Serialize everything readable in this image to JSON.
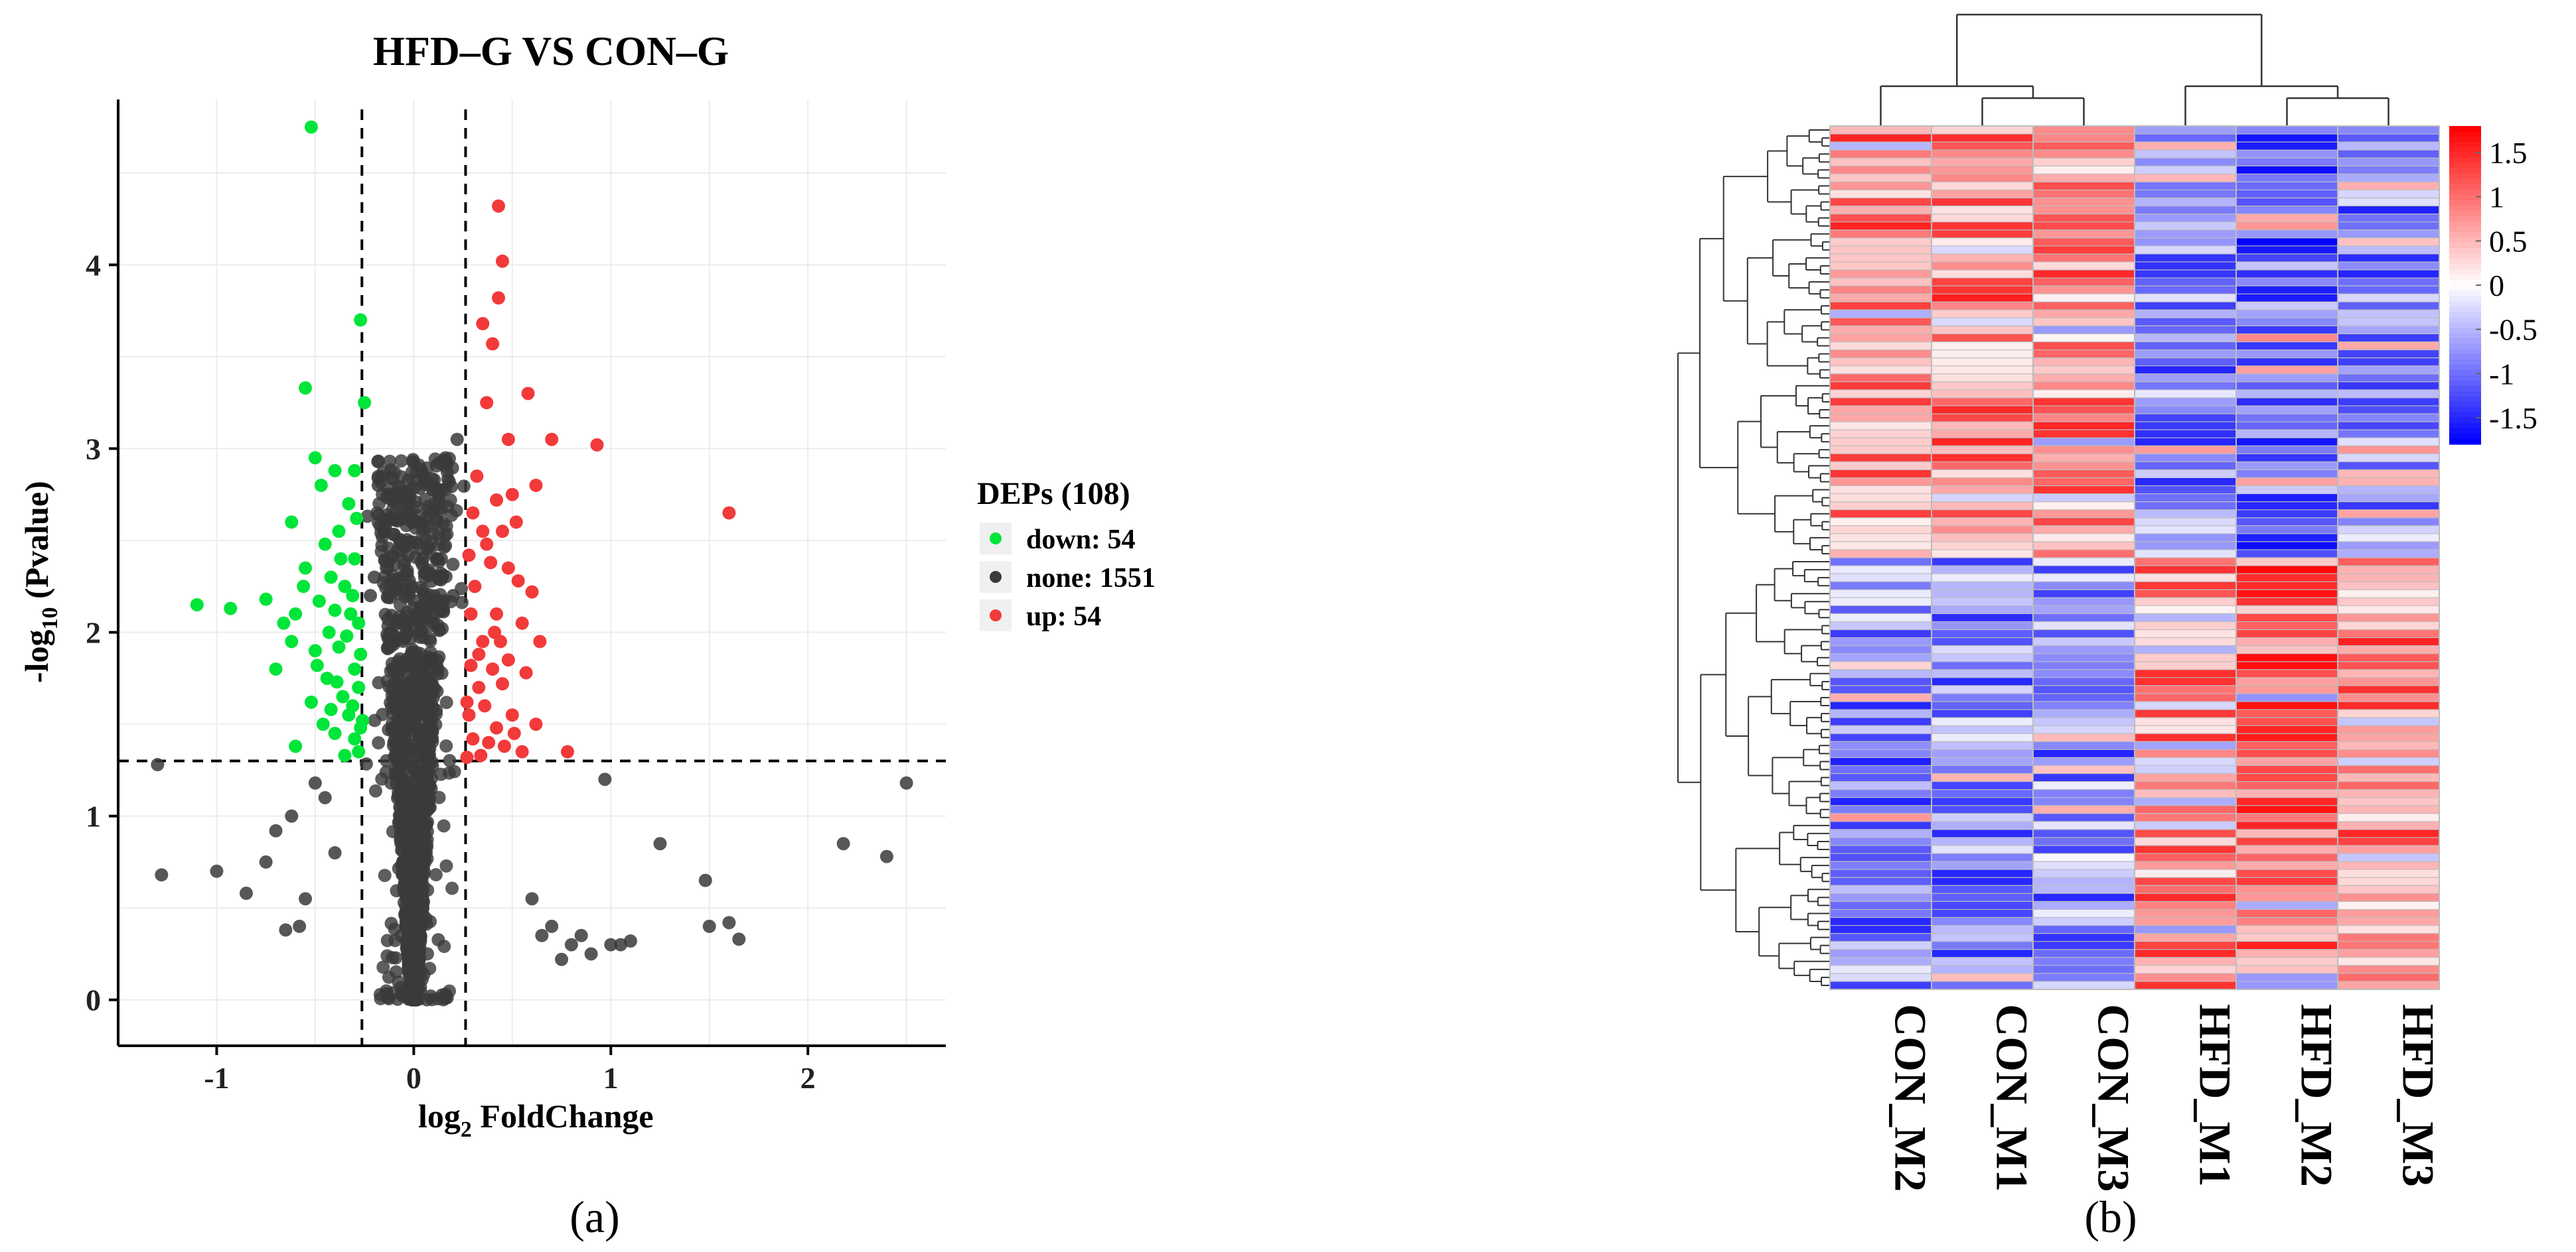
{
  "panel_a_label": "(a)",
  "panel_b_label": "(b)",
  "chart_data": [
    {
      "type": "scatter",
      "panel": "a",
      "title": "HFD–G VS CON–G",
      "xlabel_prefix": "log",
      "xlabel_sub": "2",
      "xlabel_suffix": " FoldChange",
      "ylabel_prefix": "-log",
      "ylabel_sub": "10",
      "ylabel_suffix": " (Pvalue)",
      "xlim": [
        -1.5,
        2.7
      ],
      "ylim": [
        -0.25,
        4.9
      ],
      "x_ticks": [
        -1,
        0,
        1,
        2
      ],
      "x_tick_labels": [
        "-1",
        "0",
        "1",
        "2"
      ],
      "y_ticks": [
        0,
        1,
        2,
        3,
        4
      ],
      "y_tick_labels": [
        "0",
        "1",
        "2",
        "3",
        "4"
      ],
      "thresholds": {
        "x": [
          -0.263,
          0.263
        ],
        "y": 1.3
      },
      "grid": true,
      "legend_title": "DEPs (108)",
      "legend": [
        {
          "label": "down: 54",
          "color": "#00e539"
        },
        {
          "label": "none: 1551",
          "color": "#3a3a3a"
        },
        {
          "label": "up: 54",
          "color": "#f23a3a"
        }
      ],
      "series": [
        {
          "name": "down",
          "color": "#00e539",
          "count": 54,
          "points": [
            [
              -0.52,
              4.75
            ],
            [
              -0.27,
              3.7
            ],
            [
              -0.55,
              3.33
            ],
            [
              -0.25,
              3.25
            ],
            [
              -0.5,
              2.95
            ],
            [
              -0.4,
              2.88
            ],
            [
              -0.3,
              2.88
            ],
            [
              -0.62,
              2.6
            ],
            [
              -0.33,
              2.7
            ],
            [
              -0.38,
              2.55
            ],
            [
              -0.45,
              2.48
            ],
            [
              -0.3,
              2.4
            ],
            [
              -0.42,
              2.3
            ],
            [
              -0.35,
              2.25
            ],
            [
              -0.55,
              2.35
            ],
            [
              -1.1,
              2.15
            ],
            [
              -0.93,
              2.13
            ],
            [
              -0.75,
              2.18
            ],
            [
              -0.6,
              2.1
            ],
            [
              -0.48,
              2.17
            ],
            [
              -0.4,
              2.12
            ],
            [
              -0.32,
              2.1
            ],
            [
              -0.28,
              2.05
            ],
            [
              -0.62,
              1.95
            ],
            [
              -0.5,
              1.9
            ],
            [
              -0.38,
              1.92
            ],
            [
              -0.3,
              1.8
            ],
            [
              -0.44,
              1.75
            ],
            [
              -0.36,
              1.65
            ],
            [
              -0.28,
              1.7
            ],
            [
              -0.7,
              1.8
            ],
            [
              -0.33,
              1.55
            ],
            [
              -0.26,
              1.52
            ],
            [
              -0.4,
              1.45
            ],
            [
              -0.3,
              1.42
            ],
            [
              -0.6,
              1.38
            ],
            [
              -0.35,
              1.33
            ],
            [
              -0.28,
              1.35
            ],
            [
              -0.46,
              1.5
            ],
            [
              -0.52,
              1.62
            ],
            [
              -0.39,
              1.73
            ],
            [
              -0.31,
              1.6
            ],
            [
              -0.66,
              2.05
            ],
            [
              -0.43,
              2.0
            ],
            [
              -0.27,
              1.88
            ],
            [
              -0.56,
              2.25
            ],
            [
              -0.37,
              2.4
            ],
            [
              -0.29,
              2.62
            ],
            [
              -0.47,
              2.8
            ],
            [
              -0.34,
              1.98
            ],
            [
              -0.27,
              1.48
            ],
            [
              -0.42,
              1.58
            ],
            [
              -0.31,
              2.2
            ],
            [
              -0.49,
              1.82
            ]
          ]
        },
        {
          "name": "up",
          "color": "#f23a3a",
          "count": 54,
          "points": [
            [
              0.43,
              4.32
            ],
            [
              0.45,
              4.02
            ],
            [
              0.43,
              3.82
            ],
            [
              0.35,
              3.68
            ],
            [
              0.4,
              3.57
            ],
            [
              0.58,
              3.3
            ],
            [
              0.37,
              3.25
            ],
            [
              0.7,
              3.05
            ],
            [
              0.93,
              3.02
            ],
            [
              0.48,
              3.05
            ],
            [
              1.6,
              2.65
            ],
            [
              0.62,
              2.8
            ],
            [
              0.5,
              2.75
            ],
            [
              0.32,
              2.85
            ],
            [
              0.42,
              2.72
            ],
            [
              0.3,
              2.65
            ],
            [
              0.52,
              2.6
            ],
            [
              0.35,
              2.55
            ],
            [
              0.45,
              2.55
            ],
            [
              0.28,
              2.42
            ],
            [
              0.39,
              2.38
            ],
            [
              0.48,
              2.35
            ],
            [
              0.6,
              2.22
            ],
            [
              0.31,
              2.25
            ],
            [
              0.55,
              2.05
            ],
            [
              0.42,
              2.1
            ],
            [
              0.64,
              1.95
            ],
            [
              0.35,
              1.95
            ],
            [
              0.48,
              1.85
            ],
            [
              0.29,
              1.82
            ],
            [
              0.4,
              1.8
            ],
            [
              0.57,
              1.78
            ],
            [
              0.33,
              1.7
            ],
            [
              0.45,
              1.72
            ],
            [
              0.36,
              1.6
            ],
            [
              0.28,
              1.55
            ],
            [
              0.5,
              1.55
            ],
            [
              0.42,
              1.48
            ],
            [
              0.62,
              1.5
            ],
            [
              0.3,
              1.42
            ],
            [
              0.38,
              1.4
            ],
            [
              0.46,
              1.38
            ],
            [
              0.55,
              1.35
            ],
            [
              0.34,
              1.33
            ],
            [
              0.78,
              1.35
            ],
            [
              0.27,
              1.32
            ],
            [
              0.33,
              1.88
            ],
            [
              0.51,
              1.45
            ],
            [
              0.41,
              2.0
            ],
            [
              0.29,
              2.1
            ],
            [
              0.37,
              2.48
            ],
            [
              0.53,
              2.28
            ],
            [
              0.27,
              1.62
            ],
            [
              0.44,
              1.95
            ]
          ]
        },
        {
          "name": "none",
          "color": "#3a3a3a",
          "count": 1551,
          "points": [
            [
              -1.3,
              1.28
            ],
            [
              -1.28,
              0.68
            ],
            [
              -1.0,
              0.7
            ],
            [
              -0.85,
              0.58
            ],
            [
              -0.75,
              0.75
            ],
            [
              -0.7,
              0.92
            ],
            [
              -0.65,
              0.38
            ],
            [
              -0.58,
              0.4
            ],
            [
              -0.55,
              0.55
            ],
            [
              -0.62,
              1.0
            ],
            [
              -0.5,
              1.18
            ],
            [
              -0.45,
              1.1
            ],
            [
              -0.4,
              0.8
            ],
            [
              1.25,
              0.85
            ],
            [
              1.0,
              0.3
            ],
            [
              0.9,
              0.25
            ],
            [
              1.1,
              0.32
            ],
            [
              1.05,
              0.3
            ],
            [
              1.48,
              0.65
            ],
            [
              1.5,
              0.4
            ],
            [
              1.6,
              0.42
            ],
            [
              1.65,
              0.33
            ],
            [
              2.18,
              0.85
            ],
            [
              2.4,
              0.78
            ],
            [
              2.5,
              1.18
            ],
            [
              0.97,
              1.2
            ],
            [
              0.8,
              0.3
            ],
            [
              0.7,
              0.4
            ],
            [
              0.75,
              0.22
            ],
            [
              0.6,
              0.55
            ],
            [
              0.65,
              0.35
            ],
            [
              0.85,
              0.35
            ],
            [
              0.18,
              2.82
            ],
            [
              -0.18,
              2.8
            ],
            [
              -0.12,
              2.62
            ],
            [
              -0.15,
              2.55
            ],
            [
              0.22,
              3.05
            ],
            [
              0.17,
              2.92
            ],
            [
              -0.2,
              2.3
            ],
            [
              -0.22,
              2.2
            ],
            [
              0.14,
              2.4
            ],
            [
              0.12,
              2.3
            ],
            [
              0.2,
              2.2
            ],
            [
              0.1,
              2.05
            ],
            [
              -0.1,
              1.95
            ],
            [
              0.08,
              1.85
            ]
          ]
        }
      ]
    },
    {
      "type": "heatmap",
      "panel": "b",
      "columns": [
        "CON_M2",
        "CON_M1",
        "CON_M3",
        "HFD_M1",
        "HFD_M2",
        "HFD_M3"
      ],
      "rows_count": 108,
      "top_group_rows": 54,
      "bottom_group_rows": 54,
      "color_scale": {
        "min": -1.8,
        "max": 1.8,
        "low": "#0000ff",
        "mid": "#ffffff",
        "high": "#ff0000"
      },
      "colorbar_ticks": [
        1.5,
        1,
        0.5,
        0,
        -0.5,
        -1,
        -1.5
      ],
      "colorbar_tick_labels": [
        "1.5",
        "1",
        "0.5",
        "0",
        "-0.5",
        "-1",
        "-1.5"
      ],
      "column_dendrogram": "((CON_M2,(CON_M1,CON_M3)),(HFD_M1,(HFD_M2,HFD_M3)))",
      "column_group_means": [
        0.85,
        0.85,
        0.8,
        -0.8,
        -1.05,
        -0.85
      ],
      "row_dendrogram": "two main clusters: rows 1-54 and rows 55-108"
    }
  ]
}
